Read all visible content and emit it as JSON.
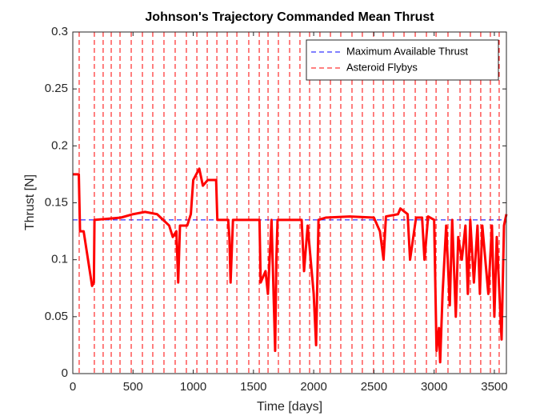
{
  "chart_data": {
    "type": "line",
    "title": "Johnson's Trajectory Commanded Mean Thrust",
    "x_label": "Time [days]",
    "y_label": "Thrust [N]",
    "xlim": [
      0,
      3600
    ],
    "xticks": [
      0,
      500,
      1000,
      1500,
      2000,
      2500,
      3000,
      3500
    ],
    "ylim": [
      0,
      0.3
    ],
    "yticks": [
      0,
      0.05,
      0.1,
      0.15,
      0.2,
      0.25,
      0.3
    ],
    "grid": false,
    "legend": "upper right",
    "series": [
      {
        "name": "Maximum Available Thrust",
        "color": "#0000ff",
        "dash": true,
        "x": [
          0,
          3600
        ],
        "values": [
          0.135,
          0.135
        ]
      },
      {
        "name": "Asteroid Flybys",
        "color": "#ff0000",
        "dash": true,
        "vertical": true,
        "x": [
          53,
          179,
          252,
          319,
          392,
          485,
          578,
          664,
          757,
          850,
          943,
          1030,
          1116,
          1196,
          1282,
          1362,
          1461,
          1548,
          1621,
          1707,
          1800,
          1886,
          1966,
          2052,
          2139,
          2225,
          2318,
          2404,
          2497,
          2577,
          2663,
          2750,
          2843,
          2936,
          3016,
          3115,
          3215,
          3301,
          3387,
          3467,
          3540
        ]
      },
      {
        "color": "#ff0000",
        "width": 3,
        "x": [
          0,
          50,
          60,
          90,
          160,
          175,
          180,
          400,
          500,
          600,
          700,
          750,
          800,
          830,
          860,
          875,
          890,
          950,
          980,
          1000,
          1050,
          1080,
          1120,
          1190,
          1200,
          1290,
          1300,
          1310,
          1330,
          1550,
          1560,
          1600,
          1620,
          1650,
          1680,
          1690,
          1700,
          1900,
          1920,
          1950,
          2000,
          2020,
          2040,
          2100,
          2300,
          2500,
          2550,
          2580,
          2600,
          2700,
          2720,
          2780,
          2800,
          2850,
          2900,
          2920,
          2950,
          3000,
          3020,
          3040,
          3050,
          3070,
          3100,
          3130,
          3150,
          3180,
          3200,
          3230,
          3260,
          3280,
          3300,
          3330,
          3360,
          3380,
          3400,
          3450,
          3480,
          3500,
          3520,
          3560,
          3580,
          3600
        ],
        "values": [
          0.175,
          0.175,
          0.125,
          0.125,
          0.077,
          0.08,
          0.135,
          0.137,
          0.14,
          0.142,
          0.14,
          0.135,
          0.13,
          0.12,
          0.125,
          0.08,
          0.13,
          0.13,
          0.14,
          0.17,
          0.18,
          0.165,
          0.17,
          0.17,
          0.135,
          0.135,
          0.12,
          0.08,
          0.135,
          0.135,
          0.08,
          0.09,
          0.07,
          0.135,
          0.02,
          0.1,
          0.135,
          0.135,
          0.09,
          0.13,
          0.07,
          0.025,
          0.135,
          0.137,
          0.138,
          0.137,
          0.125,
          0.1,
          0.138,
          0.14,
          0.145,
          0.14,
          0.1,
          0.137,
          0.137,
          0.1,
          0.138,
          0.135,
          0.02,
          0.04,
          0.01,
          0.07,
          0.13,
          0.06,
          0.135,
          0.05,
          0.12,
          0.1,
          0.13,
          0.07,
          0.135,
          0.08,
          0.13,
          0.07,
          0.13,
          0.07,
          0.13,
          0.05,
          0.12,
          0.03,
          0.13,
          0.14
        ]
      }
    ]
  }
}
